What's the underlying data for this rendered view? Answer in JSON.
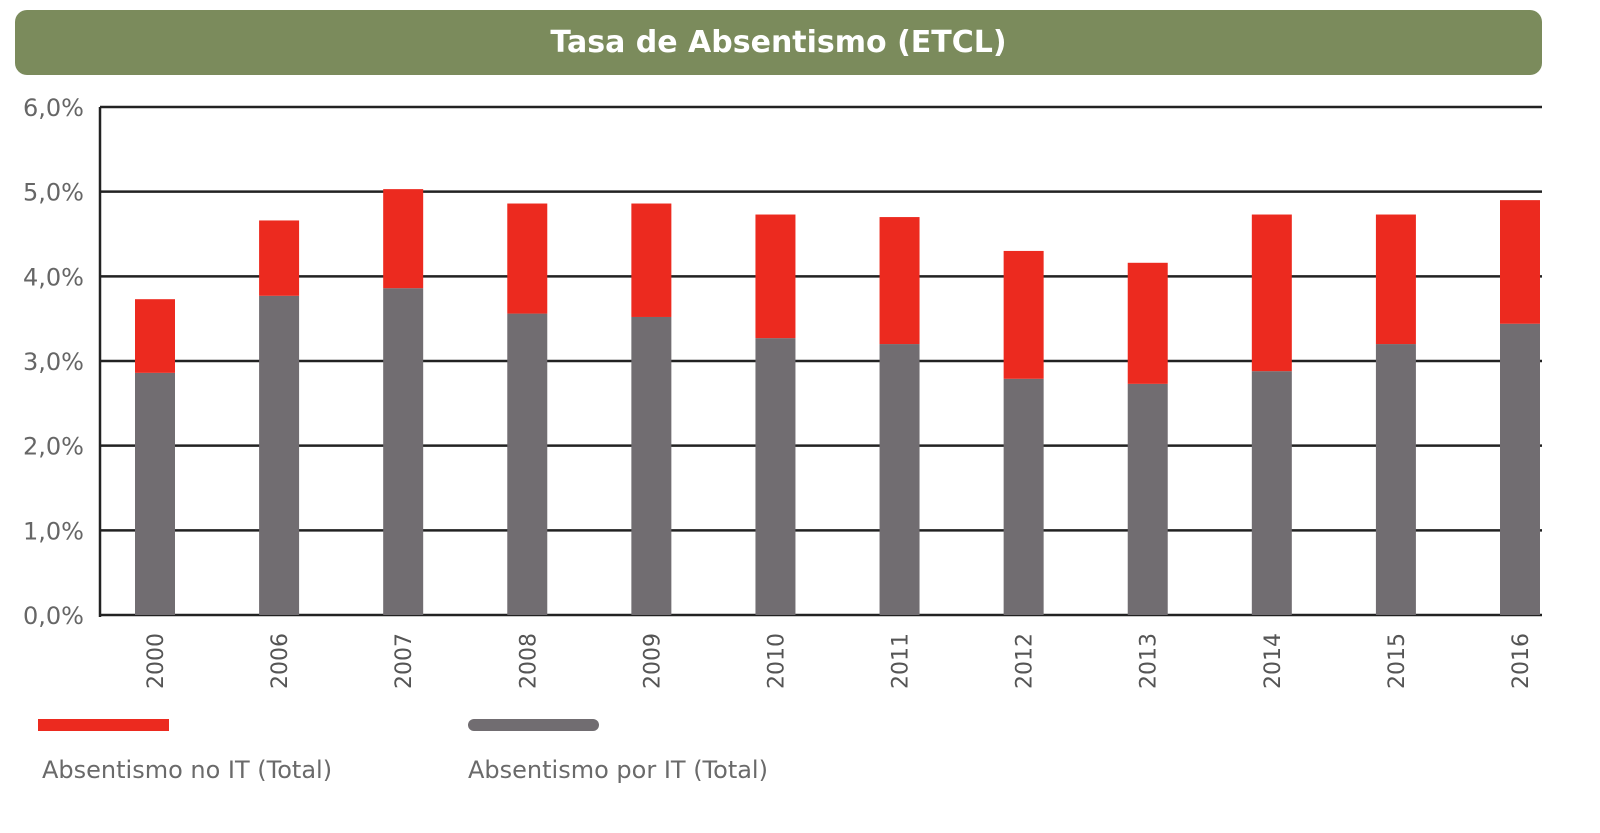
{
  "chart_data": {
    "type": "bar",
    "stacked": true,
    "title": "Tasa de Absentismo (ETCL)",
    "xlabel": "",
    "ylabel": "",
    "categories": [
      "2000",
      "2006",
      "2007",
      "2008",
      "2009",
      "2010",
      "2011",
      "2012",
      "2013",
      "2014",
      "2015",
      "2016"
    ],
    "series": [
      {
        "name": "Absentismo por IT (Total)",
        "color": "#716d71",
        "values": [
          2.86,
          3.77,
          3.86,
          3.56,
          3.52,
          3.27,
          3.2,
          2.79,
          2.73,
          2.88,
          3.2,
          3.44
        ]
      },
      {
        "name": "Absentismo no IT (Total)",
        "color": "#ec2a1f",
        "values": [
          0.87,
          0.89,
          1.17,
          1.3,
          1.34,
          1.46,
          1.5,
          1.51,
          1.43,
          1.85,
          1.53,
          1.46
        ]
      }
    ],
    "ylim": [
      0,
      6
    ],
    "yticks": [
      "0,0%",
      "1,0%",
      "2,0%",
      "3,0%",
      "4,0%",
      "5,0%",
      "6,0%"
    ],
    "grid": true,
    "legend_position": "bottom-left",
    "title_background": "#7b8b5c"
  }
}
